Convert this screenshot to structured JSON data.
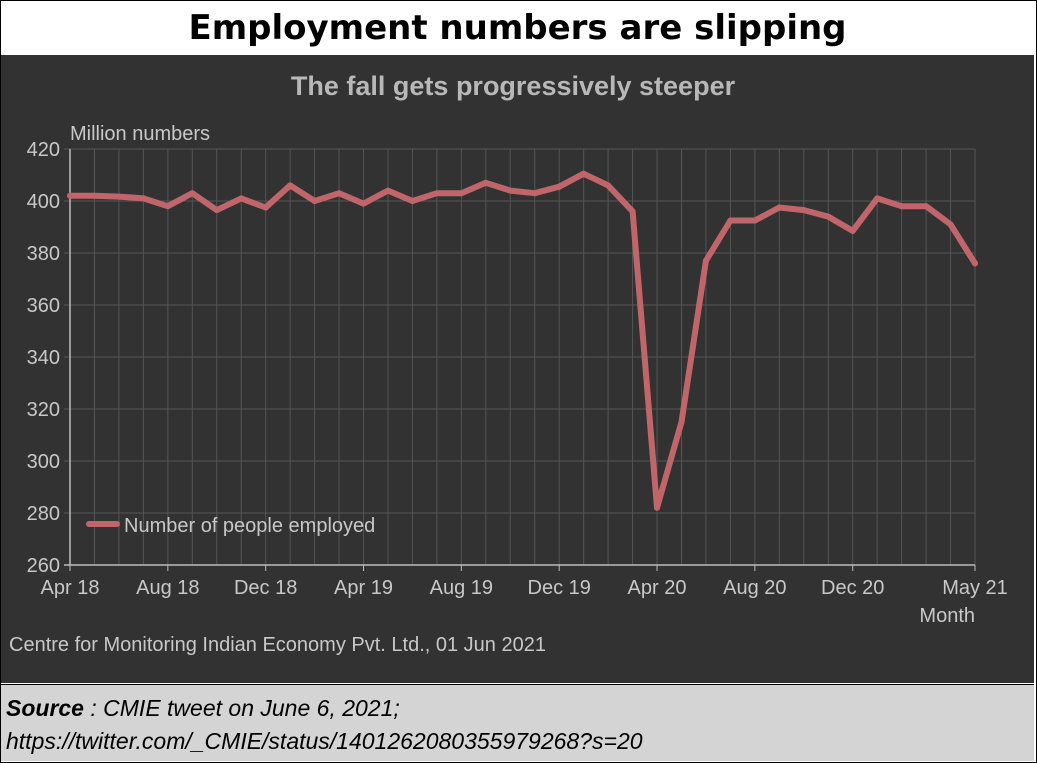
{
  "header": {
    "title": "Employment numbers are slipping"
  },
  "chart_data": {
    "type": "line",
    "title": "The fall gets progressively steeper",
    "ylabel": "Million numbers",
    "xlabel": "Month",
    "ylim": [
      260,
      420
    ],
    "yticks": [
      260,
      280,
      300,
      320,
      340,
      360,
      380,
      400,
      420
    ],
    "x_tick_labels": [
      "Apr 18",
      "Aug 18",
      "Dec 18",
      "Apr 19",
      "Aug 19",
      "Dec 19",
      "Apr 20",
      "Aug 20",
      "Dec 20",
      "May 21"
    ],
    "categories": [
      "Apr 18",
      "May 18",
      "Jun 18",
      "Jul 18",
      "Aug 18",
      "Sep 18",
      "Oct 18",
      "Nov 18",
      "Dec 18",
      "Jan 19",
      "Feb 19",
      "Mar 19",
      "Apr 19",
      "May 19",
      "Jun 19",
      "Jul 19",
      "Aug 19",
      "Sep 19",
      "Oct 19",
      "Nov 19",
      "Dec 19",
      "Jan 20",
      "Feb 20",
      "Mar 20",
      "Apr 20",
      "May 20",
      "Jun 20",
      "Jul 20",
      "Aug 20",
      "Sep 20",
      "Oct 20",
      "Nov 20",
      "Dec 20",
      "Jan 21",
      "Feb 21",
      "Mar 21",
      "Apr 21",
      "May 21"
    ],
    "series": [
      {
        "name": "Number of people employed",
        "color": "#c0666a",
        "values": [
          402,
          402,
          401.7,
          401,
          398,
          403,
          396.5,
          401,
          397.5,
          406,
          400,
          403,
          399,
          404,
          400,
          403,
          403,
          407,
          404,
          403,
          405.5,
          410.5,
          406,
          396,
          282,
          315,
          377,
          392.5,
          392.5,
          397.5,
          396.5,
          394,
          388.5,
          401,
          398,
          398,
          391,
          376
        ]
      }
    ],
    "grid": true,
    "legend_position": "bottom-left",
    "footnote": "Centre for Monitoring Indian Economy Pvt. Ltd., 01 Jun 2021"
  },
  "source": {
    "label": "Source",
    "text": " : CMIE tweet on June 6, 2021;",
    "url": "https://twitter.com/_CMIE/status/1401262080355979268?s=20"
  }
}
